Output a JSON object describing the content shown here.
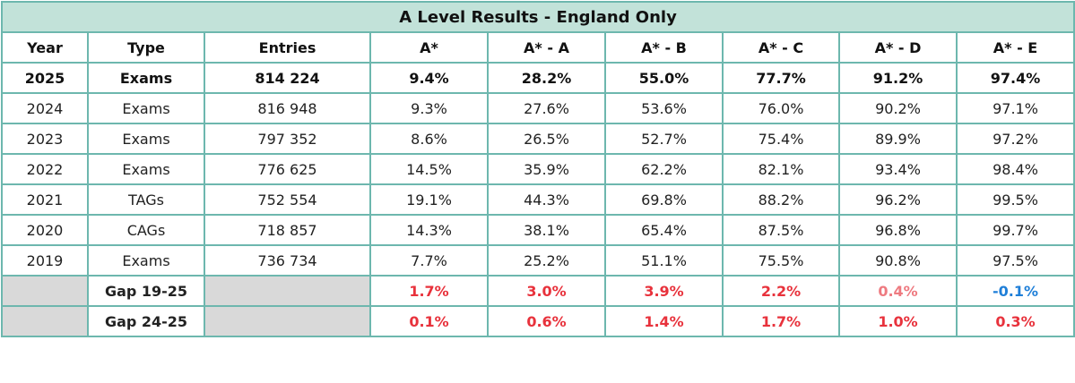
{
  "title": "A Level Results - England Only",
  "headers": [
    "Year",
    "Type",
    "Entries",
    "A*",
    "A* - A",
    "A* - B",
    "A* - C",
    "A* - D",
    "A* - E"
  ],
  "rows": [
    [
      "2025",
      "Exams",
      "814 224",
      "9.4%",
      "28.2%",
      "55.0%",
      "77.7%",
      "91.2%",
      "97.4%"
    ],
    [
      "2024",
      "Exams",
      "816 948",
      "9.3%",
      "27.6%",
      "53.6%",
      "76.0%",
      "90.2%",
      "97.1%"
    ],
    [
      "2023",
      "Exams",
      "797 352",
      "8.6%",
      "26.5%",
      "52.7%",
      "75.4%",
      "89.9%",
      "97.2%"
    ],
    [
      "2022",
      "Exams",
      "776 625",
      "14.5%",
      "35.9%",
      "62.2%",
      "82.1%",
      "93.4%",
      "98.4%"
    ],
    [
      "2021",
      "TAGs",
      "752 554",
      "19.1%",
      "44.3%",
      "69.8%",
      "88.2%",
      "96.2%",
      "99.5%"
    ],
    [
      "2020",
      "CAGs",
      "718 857",
      "14.3%",
      "38.1%",
      "65.4%",
      "87.5%",
      "96.8%",
      "99.7%"
    ],
    [
      "2019",
      "Exams",
      "736 734",
      "7.7%",
      "25.2%",
      "51.1%",
      "75.5%",
      "90.8%",
      "97.5%"
    ]
  ],
  "gaps": [
    {
      "label": "Gap 19-25",
      "values": [
        "1.7%",
        "3.0%",
        "3.9%",
        "2.2%",
        "0.4%",
        "-0.1%"
      ]
    },
    {
      "label": "Gap 24-25",
      "values": [
        "0.1%",
        "0.6%",
        "1.4%",
        "1.7%",
        "1.0%",
        "0.3%"
      ]
    }
  ],
  "colors": {
    "title_background": "#c2e2d9",
    "border": "#6db7ae",
    "empty_cell": "#d9d9d9",
    "gap_increase": "#e8323c",
    "gap_small_increase": "#ee7a80",
    "gap_decrease": "#1f7fd8"
  }
}
